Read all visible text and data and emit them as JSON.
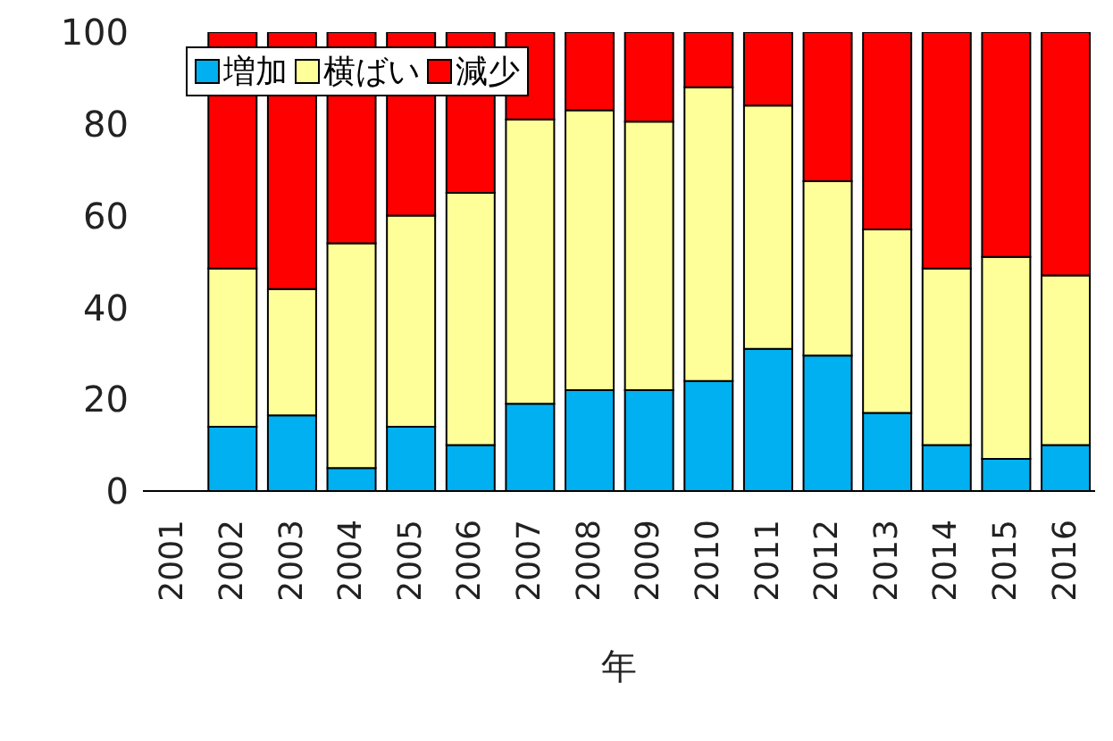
{
  "chart_data": {
    "type": "bar",
    "stacked": true,
    "xlabel": "年",
    "categories": [
      "2001",
      "2002",
      "2003",
      "2004",
      "2005",
      "2006",
      "2007",
      "2008",
      "2009",
      "2010",
      "2011",
      "2012",
      "2013",
      "2014",
      "2015",
      "2016"
    ],
    "series": [
      {
        "name": "増加",
        "color": "#00b0f0",
        "values": [
          null,
          14,
          16.5,
          5,
          14,
          10,
          19,
          22,
          22,
          24,
          31,
          29.5,
          17,
          10,
          7,
          10
        ]
      },
      {
        "name": "横ばい",
        "color": "#ffff99",
        "values": [
          null,
          34.5,
          27.5,
          49,
          46,
          55,
          62,
          61,
          58.5,
          64,
          53,
          38,
          40,
          38.5,
          44,
          37
        ]
      },
      {
        "name": "減少",
        "color": "#ff0000",
        "values": [
          null,
          51.5,
          56,
          46,
          40,
          35,
          19,
          17,
          19.5,
          12,
          16,
          32.5,
          43,
          51.5,
          49,
          53
        ]
      }
    ],
    "ylim": [
      0,
      100
    ],
    "yticks": [
      0,
      20,
      40,
      60,
      80,
      100
    ],
    "grid": false,
    "legend": "top left"
  }
}
